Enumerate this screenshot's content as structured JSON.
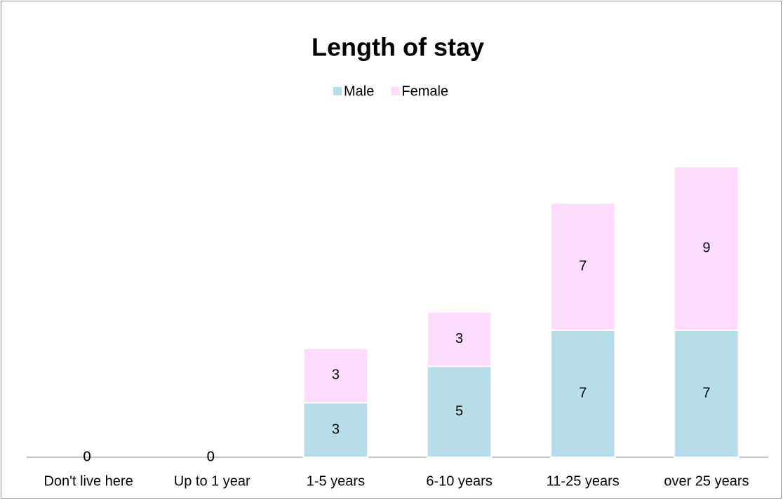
{
  "chart_data": {
    "type": "stacked_bar",
    "title": "Length of stay",
    "categories": [
      "Don't live here",
      "Up to 1 year",
      "1-5 years",
      "6-10 years",
      "11-25 years",
      "over 25 years"
    ],
    "series": [
      {
        "name": "Male",
        "color": "#b7dde8",
        "values": [
          0,
          0,
          3,
          5,
          7,
          7
        ]
      },
      {
        "name": "Female",
        "color": "#fedcfe",
        "values": [
          0,
          0,
          3,
          3,
          7,
          9
        ]
      }
    ],
    "ylim": [
      0,
      18
    ],
    "legend": "top"
  }
}
